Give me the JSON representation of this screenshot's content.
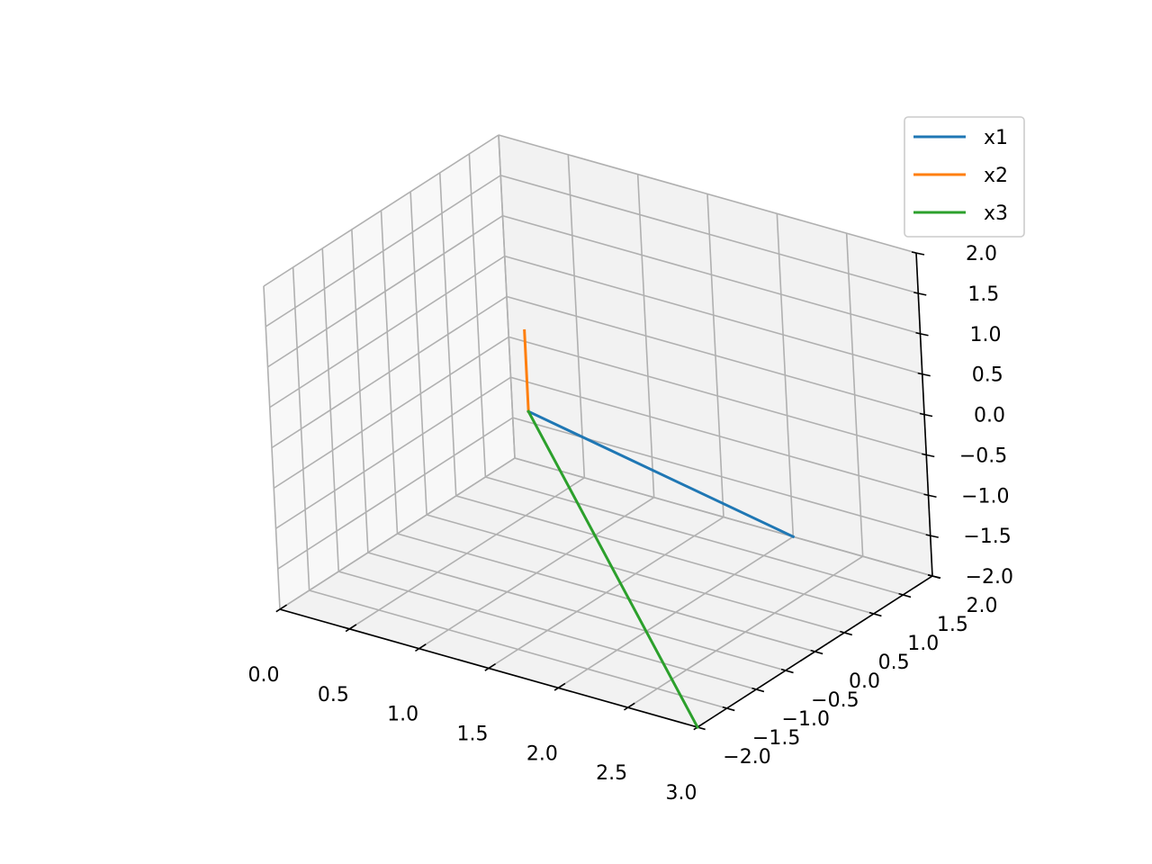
{
  "chart_data": {
    "type": "line",
    "projection": "3d",
    "grid": true,
    "legend_position": "top-right",
    "x_ticks": [
      "0.0",
      "0.5",
      "1.0",
      "1.5",
      "2.0",
      "2.5",
      "3.0"
    ],
    "y_ticks": [
      "−2.0",
      "−1.5",
      "−1.0",
      "−0.5",
      "0.0",
      "0.5",
      "1.0",
      "1.5",
      "2.0"
    ],
    "z_ticks": [
      "−2.0",
      "−1.5",
      "−1.0",
      "−0.5",
      "0.0",
      "0.5",
      "1.0",
      "1.5",
      "2.0"
    ],
    "xlim": [
      0,
      3
    ],
    "ylim": [
      -2,
      2
    ],
    "zlim": [
      -2,
      2
    ],
    "series": [
      {
        "name": "x1",
        "color": "#1f77b4",
        "points": [
          [
            1.0,
            0.0,
            0.0
          ],
          [
            2.0,
            2.0,
            -2.0
          ]
        ]
      },
      {
        "name": "x2",
        "color": "#ff7f0e",
        "points": [
          [
            1.0,
            0.0,
            0.0
          ],
          [
            1.0,
            0.0,
            1.0
          ]
        ]
      },
      {
        "name": "x3",
        "color": "#2ca02c",
        "points": [
          [
            1.0,
            0.0,
            0.0
          ],
          [
            3.0,
            -2.0,
            -2.0
          ]
        ]
      }
    ]
  }
}
